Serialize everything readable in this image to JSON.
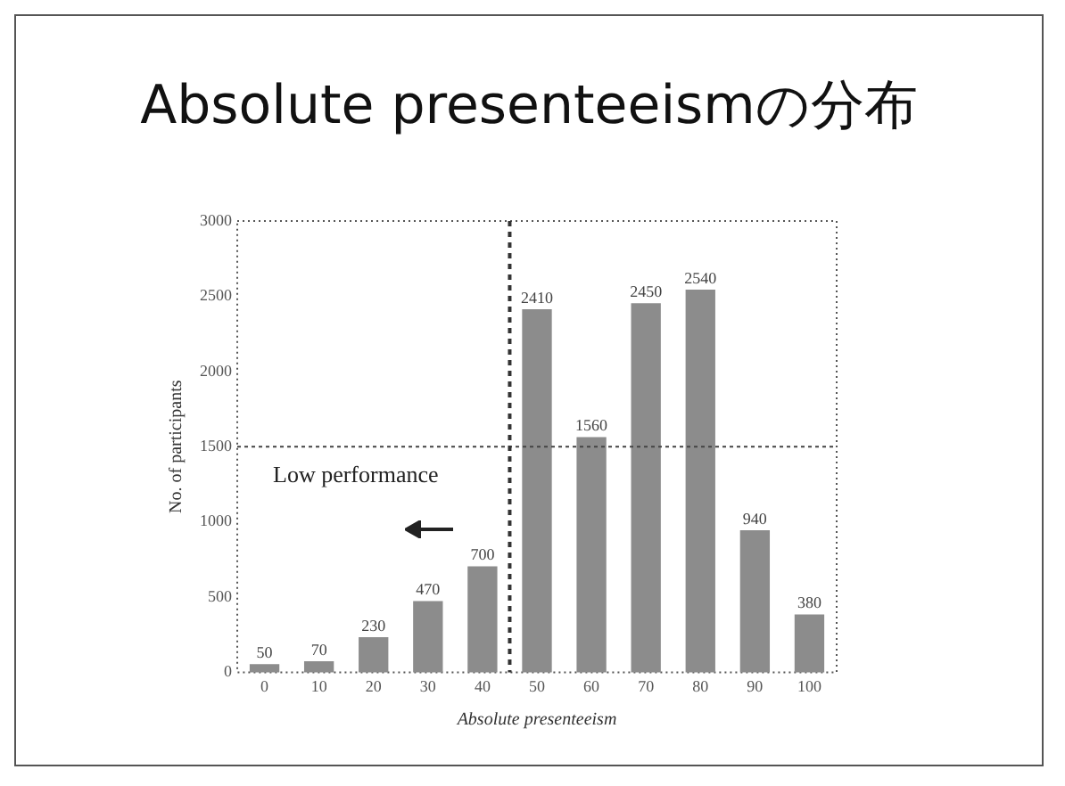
{
  "chart_data": {
    "type": "bar",
    "title": "Absolute presenteeismの分布",
    "xlabel": "Absolute presenteeism",
    "ylabel": "No. of participants",
    "x": [
      0,
      10,
      20,
      30,
      40,
      50,
      60,
      70,
      80,
      90,
      100
    ],
    "values": [
      50,
      70,
      230,
      470,
      700,
      2410,
      1560,
      2450,
      2540,
      940,
      380
    ],
    "color": "#8c8c8c",
    "data_labels": true,
    "xlim": [
      -5,
      105
    ],
    "xticks": [
      0,
      10,
      20,
      30,
      40,
      50,
      60,
      70,
      80,
      90,
      100
    ],
    "ylim": [
      0,
      3000
    ],
    "yticks": [
      0,
      500,
      1000,
      1500,
      2000,
      2500,
      3000
    ],
    "ref_lines": [
      {
        "axis": "y",
        "value": 1500
      },
      {
        "axis": "x",
        "value": 45
      }
    ],
    "annotations": [
      "Low performance"
    ],
    "grid": false,
    "legend": false
  }
}
